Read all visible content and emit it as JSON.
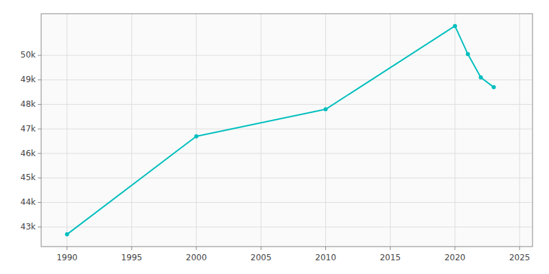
{
  "chart_data": {
    "type": "line",
    "x": [
      1990,
      2000,
      2010,
      2020,
      2021,
      2022,
      2023
    ],
    "values": [
      42700,
      46700,
      47800,
      51200,
      50050,
      49100,
      48700
    ],
    "color": "#00BEBE",
    "marker": "circle",
    "xlim": [
      1988,
      2026
    ],
    "ylim": [
      42200,
      51700
    ],
    "xticks": [
      1990,
      1995,
      2000,
      2005,
      2010,
      2015,
      2020,
      2025
    ],
    "yticks": [
      {
        "value": 43000,
        "label": "43k"
      },
      {
        "value": 44000,
        "label": "44k"
      },
      {
        "value": 45000,
        "label": "45k"
      },
      {
        "value": 46000,
        "label": "46k"
      },
      {
        "value": 47000,
        "label": "47k"
      },
      {
        "value": 48000,
        "label": "48k"
      },
      {
        "value": 49000,
        "label": "49k"
      },
      {
        "value": 50000,
        "label": "50k"
      }
    ],
    "grid": true
  }
}
